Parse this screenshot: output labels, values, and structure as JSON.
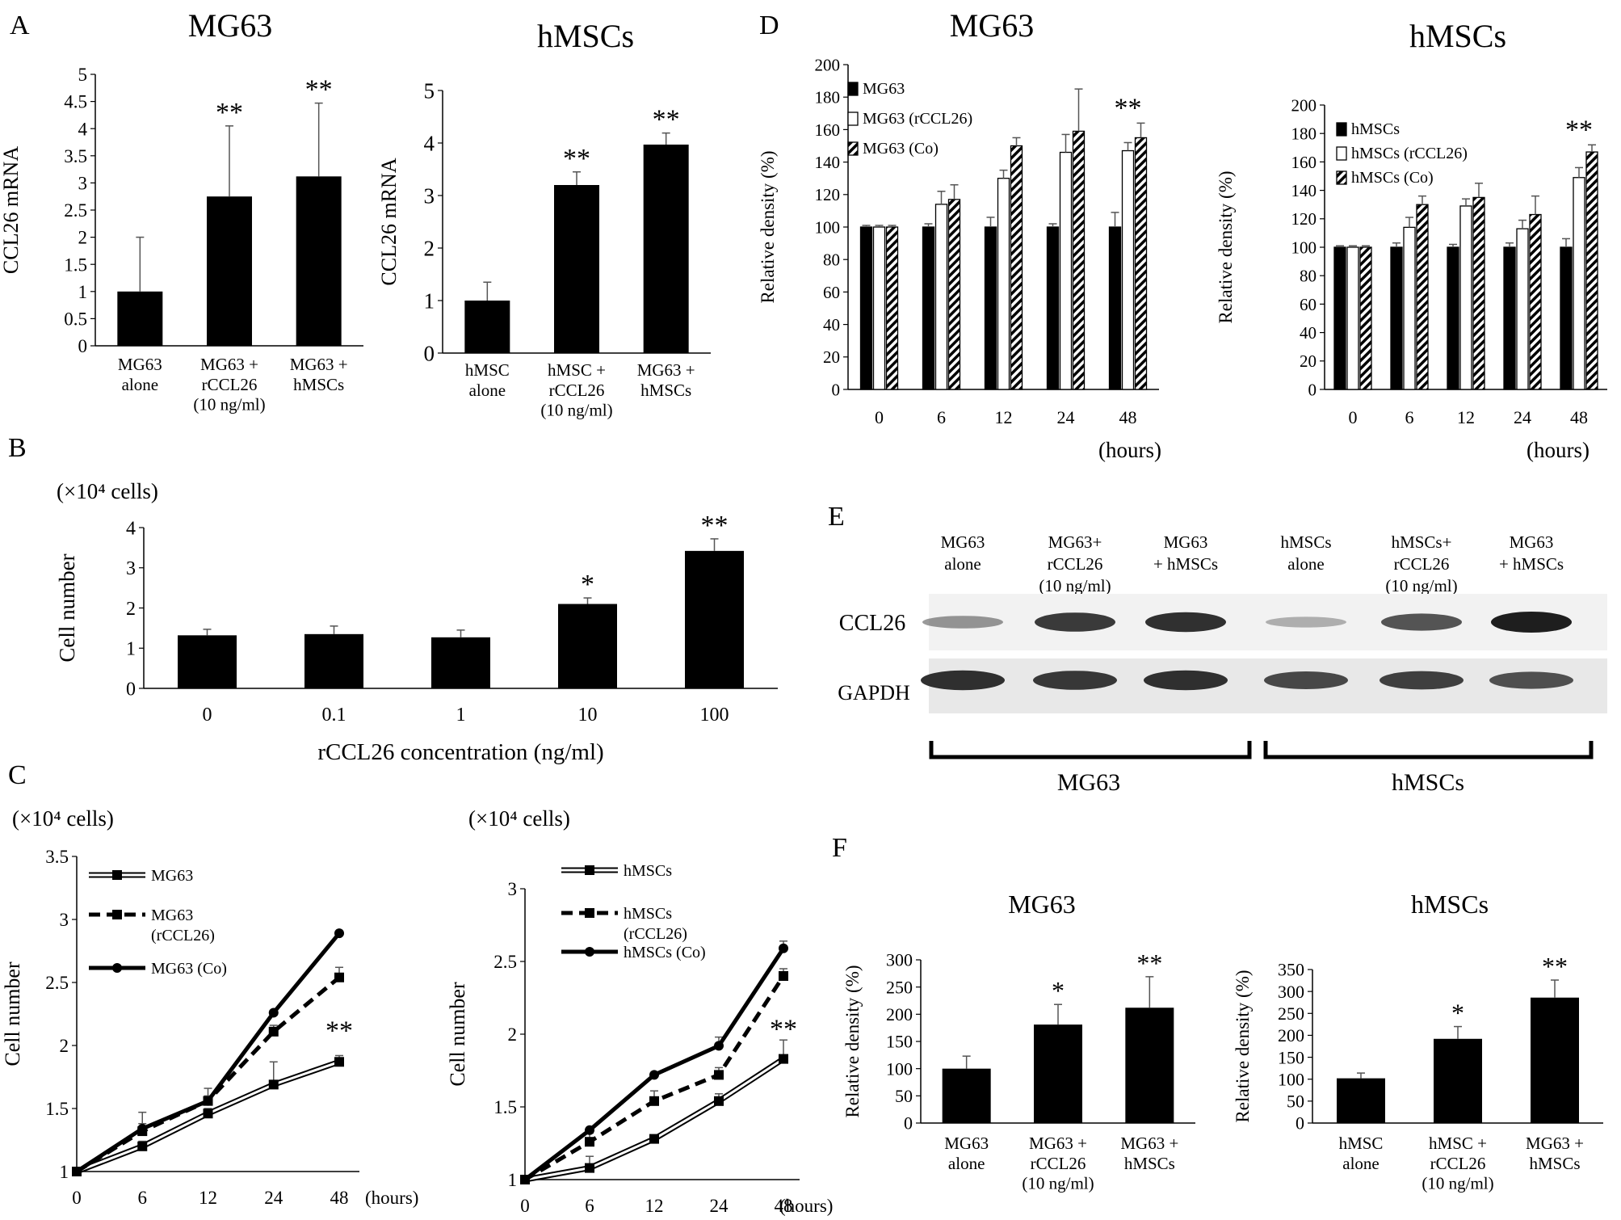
{
  "panels": {
    "A": "A",
    "B": "B",
    "C": "C",
    "D": "D",
    "E": "E",
    "F": "F"
  },
  "colors": {
    "bar": "#000000",
    "open_bar": "#ffffff",
    "stroke": "#000000",
    "error": "#555555",
    "blot_bg": "#f2f2f2",
    "band": "#1e1e1e"
  },
  "chart_data": [
    {
      "id": "A1",
      "type": "bar",
      "title": "MG63",
      "ylabel": "CCL26 mRNA",
      "ylim": [
        0,
        5
      ],
      "ticks": [
        "0",
        "0.5",
        "1",
        "1.5",
        "2",
        "2.5",
        "3",
        "3.5",
        "4",
        "4.5",
        "5"
      ],
      "categories": [
        [
          "MG63",
          "alone"
        ],
        [
          "MG63 +",
          "rCCL26",
          "(10 ng/ml)"
        ],
        [
          "MG63 +",
          "hMSCs"
        ]
      ],
      "values": [
        1.0,
        2.75,
        3.12
      ],
      "errors": [
        1.0,
        1.3,
        1.35
      ],
      "sig": [
        "",
        "**",
        "**"
      ]
    },
    {
      "id": "A2",
      "type": "bar",
      "title": "hMSCs",
      "ylabel": "CCL26 mRNA",
      "ylim": [
        0,
        5
      ],
      "ticks": [
        "0",
        "1",
        "2",
        "3",
        "4",
        "5"
      ],
      "categories": [
        [
          "hMSC",
          "alone"
        ],
        [
          "hMSC +",
          "rCCL26",
          "(10 ng/ml)"
        ],
        [
          "MG63 +",
          "hMSCs"
        ]
      ],
      "values": [
        1.0,
        3.2,
        3.97
      ],
      "errors": [
        0.35,
        0.25,
        0.22
      ],
      "sig": [
        "",
        "**",
        "**"
      ]
    },
    {
      "id": "B",
      "type": "bar",
      "title": "",
      "ylabel": "Cell number",
      "unit_label": "(×10⁴ cells)",
      "xlabel": "rCCL26 concentration (ng/ml)",
      "ylim": [
        0,
        4
      ],
      "ticks": [
        "0",
        "1",
        "2",
        "3",
        "4"
      ],
      "categories": [
        [
          "0"
        ],
        [
          "0.1"
        ],
        [
          "1"
        ],
        [
          "10"
        ],
        [
          "100"
        ]
      ],
      "values": [
        1.32,
        1.35,
        1.27,
        2.1,
        3.42
      ],
      "errors": [
        0.15,
        0.2,
        0.18,
        0.15,
        0.3
      ],
      "sig": [
        "",
        "",
        "",
        "*",
        "**"
      ]
    },
    {
      "id": "C1",
      "type": "line",
      "ylabel": "Cell number",
      "unit_label": "(×10⁴ cells)",
      "xunit": "(hours)",
      "ylim": [
        1,
        3.5
      ],
      "ticks": [
        "1",
        "1.5",
        "2",
        "2.5",
        "3",
        "3.5"
      ],
      "categories": [
        "0",
        "6",
        "12",
        "24",
        "48"
      ],
      "series": [
        {
          "name": "MG63",
          "legend": [
            "MG63"
          ],
          "style": "double",
          "marker": "square",
          "values": [
            1.0,
            1.2,
            1.46,
            1.69,
            1.87
          ],
          "errors": [
            0,
            0.04,
            0.04,
            0.18,
            0.05
          ]
        },
        {
          "name": "MG63 (rCCL26)",
          "legend": [
            "MG63",
            "(rCCL26)"
          ],
          "style": "dashed",
          "marker": "square",
          "values": [
            1.0,
            1.32,
            1.56,
            2.11,
            2.54
          ],
          "errors": [
            0,
            0.06,
            0.04,
            0.05,
            0.08
          ]
        },
        {
          "name": "MG63 (Co)",
          "legend": [
            "MG63 (Co)"
          ],
          "style": "solid",
          "marker": "circle",
          "values": [
            1.0,
            1.34,
            1.56,
            2.26,
            2.89
          ],
          "errors": [
            0,
            0.13,
            0.1,
            0,
            0
          ]
        }
      ],
      "sig": {
        "text": "**",
        "at": 4
      }
    },
    {
      "id": "C2",
      "type": "line",
      "ylabel": "Cell number",
      "unit_label": "(×10⁴ cells)",
      "xunit": "(hours)",
      "ylim": [
        1,
        3.0
      ],
      "ticks": [
        "1",
        "1.5",
        "2",
        "2.5",
        "3"
      ],
      "categories": [
        "0",
        "6",
        "12",
        "24",
        "48"
      ],
      "series": [
        {
          "name": "hMSCs",
          "legend": [
            "hMSCs"
          ],
          "style": "double",
          "marker": "square",
          "values": [
            1.0,
            1.08,
            1.28,
            1.54,
            1.83
          ],
          "errors": [
            0,
            0.08,
            0,
            0.05,
            0.13
          ]
        },
        {
          "name": "hMSCs (rCCL26)",
          "legend": [
            "hMSCs",
            "(rCCL26)"
          ],
          "style": "dashed",
          "marker": "square",
          "values": [
            1.0,
            1.26,
            1.54,
            1.72,
            2.4
          ],
          "errors": [
            0,
            0.06,
            0.07,
            0.05,
            0.05
          ]
        },
        {
          "name": "hMSCs (Co)",
          "legend": [
            "hMSCs (Co)"
          ],
          "style": "solid",
          "marker": "circle",
          "values": [
            1.0,
            1.34,
            1.72,
            1.92,
            2.59
          ],
          "errors": [
            0,
            0,
            0,
            0.06,
            0.05
          ]
        }
      ],
      "sig": {
        "text": "**",
        "at": 4
      }
    },
    {
      "id": "D1",
      "type": "bar",
      "title": "MG63",
      "ylabel": "Relative density (%)",
      "xunit": "(hours)",
      "ylim": [
        0,
        200
      ],
      "ticks": [
        "0",
        "20",
        "40",
        "60",
        "80",
        "100",
        "120",
        "140",
        "160",
        "180",
        "200"
      ],
      "categories": [
        "0",
        "6",
        "12",
        "24",
        "48"
      ],
      "series": [
        {
          "name": "MG63",
          "fill": "solid",
          "values": [
            100,
            100,
            100,
            100,
            100
          ],
          "errors": [
            1,
            2,
            6,
            2,
            9
          ]
        },
        {
          "name": "MG63 (rCCL26)",
          "fill": "open",
          "values": [
            100,
            114,
            130,
            146,
            147
          ],
          "errors": [
            1,
            8,
            5,
            11,
            5
          ]
        },
        {
          "name": "MG63 (Co)",
          "fill": "hatch",
          "values": [
            100,
            117,
            150,
            159,
            155
          ],
          "errors": [
            1,
            9,
            5,
            26,
            9
          ]
        }
      ],
      "sig": [
        "",
        "",
        "",
        "",
        "**"
      ]
    },
    {
      "id": "D2",
      "type": "bar",
      "title": "hMSCs",
      "ylabel": "Relative density (%)",
      "xunit": "(hours)",
      "ylim": [
        0,
        200
      ],
      "ticks": [
        "0",
        "20",
        "40",
        "60",
        "80",
        "100",
        "120",
        "140",
        "160",
        "180",
        "200"
      ],
      "categories": [
        "0",
        "6",
        "12",
        "24",
        "48"
      ],
      "series": [
        {
          "name": "hMSCs",
          "fill": "solid",
          "values": [
            100,
            100,
            100,
            100,
            100
          ],
          "errors": [
            1,
            3,
            2,
            3,
            6
          ]
        },
        {
          "name": "hMSCs (rCCL26)",
          "fill": "open",
          "values": [
            100,
            114,
            129,
            113,
            149
          ],
          "errors": [
            1,
            7,
            5,
            6,
            7
          ]
        },
        {
          "name": "hMSCs (Co)",
          "fill": "hatch",
          "values": [
            100,
            130,
            135,
            123,
            167
          ],
          "errors": [
            1,
            6,
            10,
            13,
            5
          ]
        }
      ],
      "sig": [
        "",
        "",
        "",
        "",
        "**"
      ]
    },
    {
      "id": "F1",
      "type": "bar",
      "title": "MG63",
      "ylabel": "Relative density (%)",
      "ylim": [
        0,
        300
      ],
      "ticks": [
        "0",
        "50",
        "100",
        "150",
        "200",
        "250",
        "300"
      ],
      "categories": [
        [
          "MG63",
          "alone"
        ],
        [
          "MG63 +",
          "rCCL26",
          "(10 ng/ml)"
        ],
        [
          "MG63 +",
          "hMSCs"
        ]
      ],
      "values": [
        100,
        181,
        212
      ],
      "errors": [
        23,
        37,
        57
      ],
      "sig": [
        "",
        "*",
        "**"
      ]
    },
    {
      "id": "F2",
      "type": "bar",
      "title": "hMSCs",
      "ylabel": "Relative density (%)",
      "ylim": [
        0,
        350
      ],
      "ticks": [
        "0",
        "50",
        "100",
        "150",
        "200",
        "250",
        "300",
        "350"
      ],
      "categories": [
        [
          "hMSC",
          "alone"
        ],
        [
          "hMSC +",
          "rCCL26",
          "(10 ng/ml)"
        ],
        [
          "MG63 +",
          "hMSCs"
        ]
      ],
      "values": [
        102,
        192,
        286
      ],
      "errors": [
        12,
        28,
        40
      ],
      "sig": [
        "",
        "*",
        "**"
      ]
    }
  ],
  "blot": {
    "lanes": [
      [
        "MG63",
        "alone"
      ],
      [
        "MG63+",
        "rCCL26",
        "(10 ng/ml)"
      ],
      [
        "MG63",
        "+ hMSCs"
      ],
      [
        "hMSCs",
        "alone"
      ],
      [
        "hMSCs+",
        "rCCL26",
        "(10 ng/ml)"
      ],
      [
        "MG63",
        "+ hMSCs"
      ]
    ],
    "row_labels": [
      "CCL26",
      "GAPDH"
    ],
    "ccl26_intensity": [
      0.35,
      0.85,
      0.9,
      0.2,
      0.7,
      1.0
    ],
    "gapdh_intensity": [
      0.9,
      0.85,
      0.9,
      0.75,
      0.8,
      0.7
    ],
    "groups": [
      "MG63",
      "hMSCs"
    ]
  }
}
